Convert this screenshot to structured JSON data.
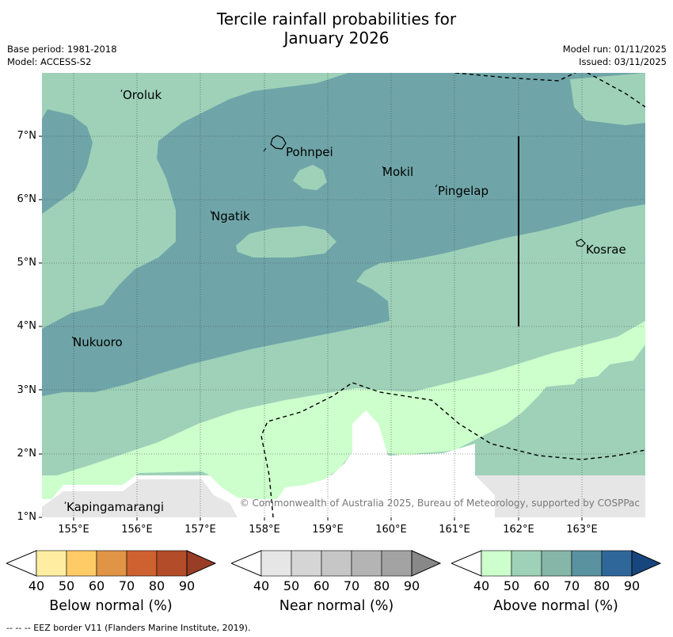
{
  "title_line1": "Tercile rainfall probabilities for",
  "title_line2": "January 2026",
  "base_period": "Base period: 1981-2018",
  "model": "Model: ACCESS-S2",
  "model_run": "Model run: 01/11/2025",
  "issued": "Issued: 03/11/2025",
  "lat_labels": [
    "7°N",
    "6°N",
    "5°N",
    "4°N",
    "3°N",
    "2°N",
    "1°N"
  ],
  "lon_labels": [
    "155°E",
    "156°E",
    "157°E",
    "158°E",
    "159°E",
    "160°E",
    "161°E",
    "162°E",
    "163°E"
  ],
  "places": {
    "oroluk": "Oroluk",
    "pohnpei": "Pohnpei",
    "mokil": "Mokil",
    "pingelap": "Pingelap",
    "ngatik": "Ngatik",
    "kosrae": "Kosrae",
    "nukuoro": "Nukuoro",
    "kapingamarangi": "Kapingamarangi"
  },
  "copyright": "© Commonwealth of Australia 2025, Bureau of Meteorology, supported by COSPPac",
  "legend": {
    "ticks": [
      "40",
      "50",
      "60",
      "70",
      "80",
      "90"
    ],
    "below": {
      "label": "Below normal (%)",
      "colors": [
        "#ffffff",
        "#ffeea1",
        "#fecb67",
        "#e09446",
        "#cd6130",
        "#b34c28",
        "#993d26"
      ]
    },
    "near": {
      "label": "Near normal (%)",
      "colors": [
        "#ffffff",
        "#e6e6e6",
        "#d5d5d5",
        "#c6c6c6",
        "#b4b4b4",
        "#a3a3a3",
        "#888888"
      ]
    },
    "above": {
      "label": "Above normal (%)",
      "colors": [
        "#ffffff",
        "#ccffcc",
        "#9ed1b8",
        "#86b6a8",
        "#5a92a0",
        "#30679a",
        "#17467e"
      ]
    }
  },
  "footnote": "--  --  -- EEZ border V11 (Flanders Marine Institute, 2019).",
  "colors": {
    "green_light": "#ccffcc",
    "green_mid": "#9ed1b8",
    "teal": "#6fa5a8",
    "grey": "#e6e6e6"
  }
}
